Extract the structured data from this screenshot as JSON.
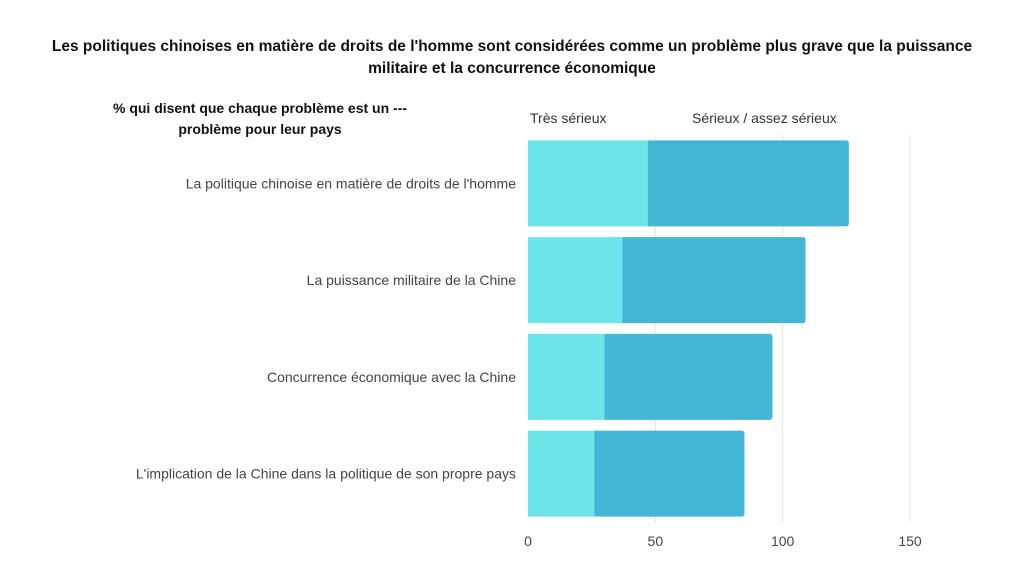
{
  "chart_data": {
    "type": "bar",
    "orientation": "horizontal",
    "stacked": true,
    "title": "Les politiques chinoises en matière de droits de l'homme sont considérées comme un problème plus grave que la puissance militaire et la concurrence économique",
    "subtitle": "% qui disent que chaque problème est un --- problème pour leur pays",
    "categories": [
      "La politique chinoise en matière de droits de l'homme",
      "La puissance militaire de la Chine",
      "Concurrence économique avec la Chine",
      "L'implication de la Chine dans la politique de son propre pays"
    ],
    "series": [
      {
        "name": "Très sérieux",
        "values": [
          47,
          37,
          30,
          26
        ],
        "color": "#6ce5e8"
      },
      {
        "name": "Sérieux / assez sérieux",
        "values": [
          79,
          72,
          66,
          59
        ],
        "color": "#43b8d6"
      }
    ],
    "xlim": [
      0,
      150
    ],
    "xticks": [
      "0",
      "50",
      "100",
      "150"
    ],
    "grid": true,
    "legend": "top"
  }
}
